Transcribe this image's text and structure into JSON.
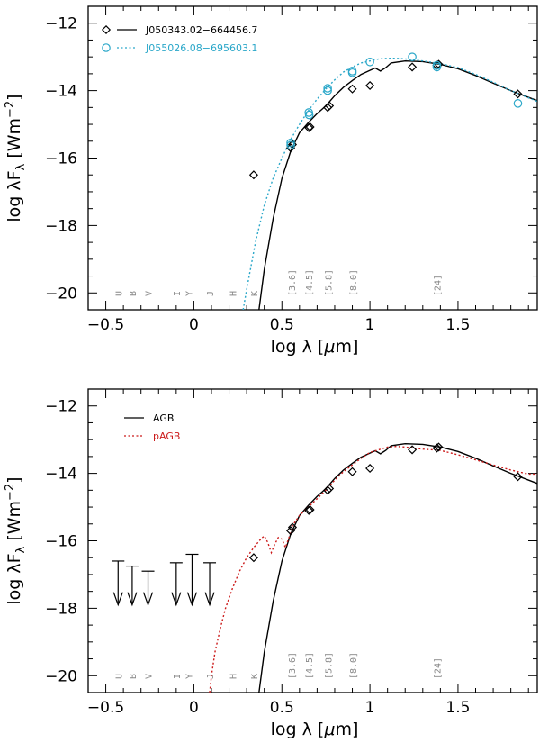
{
  "chart_data": [
    {
      "type": "scatter",
      "panel": "top",
      "xlabel": "log λ [μm]",
      "ylabel": "log λF_λ [Wm⁻²]",
      "xlim": [
        -0.6,
        1.95
      ],
      "ylim": [
        -20.5,
        -11.5
      ],
      "xticks": [
        -0.5,
        0,
        0.5,
        1,
        1.5
      ],
      "xtick_labels": [
        "−0.5",
        "0",
        "0.5",
        "1",
        "1.5"
      ],
      "yticks": [
        -20,
        -18,
        -16,
        -14,
        -12
      ],
      "ytick_labels": [
        "−20",
        "−18",
        "−16",
        "−14",
        "−12"
      ],
      "legend_position": "top-left",
      "band_labels": [
        {
          "label": "U",
          "x": -0.43
        },
        {
          "label": "B",
          "x": -0.35
        },
        {
          "label": "V",
          "x": -0.26
        },
        {
          "label": "I",
          "x": -0.1
        },
        {
          "label": "Y",
          "x": -0.03
        },
        {
          "label": "J",
          "x": 0.09
        },
        {
          "label": "H",
          "x": 0.22
        },
        {
          "label": "K",
          "x": 0.34
        },
        {
          "label": "[3.6]",
          "x": 0.556
        },
        {
          "label": "[4.5]",
          "x": 0.653
        },
        {
          "label": "[5.8]",
          "x": 0.763
        },
        {
          "label": "[8.0]",
          "x": 0.903
        },
        {
          "label": "[24]",
          "x": 1.38
        }
      ],
      "series": [
        {
          "name": "J050343.02−664456.7",
          "marker": "diamond",
          "color": "#000000",
          "line_style": "solid",
          "points": [
            [
              0.34,
              -16.5
            ],
            [
              0.55,
              -15.7
            ],
            [
              0.56,
              -15.6
            ],
            [
              0.653,
              -15.1
            ],
            [
              0.66,
              -15.08
            ],
            [
              0.76,
              -14.5
            ],
            [
              0.77,
              -14.45
            ],
            [
              0.9,
              -13.95
            ],
            [
              1.0,
              -13.85
            ],
            [
              1.24,
              -13.3
            ],
            [
              1.38,
              -13.25
            ],
            [
              1.39,
              -13.22
            ],
            [
              1.84,
              -14.1
            ]
          ],
          "model": [
            [
              0.37,
              -20.5
            ],
            [
              0.4,
              -19.3
            ],
            [
              0.45,
              -17.8
            ],
            [
              0.5,
              -16.6
            ],
            [
              0.55,
              -15.8
            ],
            [
              0.6,
              -15.25
            ],
            [
              0.65,
              -14.95
            ],
            [
              0.7,
              -14.68
            ],
            [
              0.75,
              -14.45
            ],
            [
              0.8,
              -14.15
            ],
            [
              0.85,
              -13.9
            ],
            [
              0.9,
              -13.7
            ],
            [
              0.95,
              -13.52
            ],
            [
              1.0,
              -13.4
            ],
            [
              1.03,
              -13.33
            ],
            [
              1.06,
              -13.42
            ],
            [
              1.09,
              -13.32
            ],
            [
              1.12,
              -13.18
            ],
            [
              1.2,
              -13.12
            ],
            [
              1.3,
              -13.14
            ],
            [
              1.4,
              -13.22
            ],
            [
              1.5,
              -13.35
            ],
            [
              1.6,
              -13.55
            ],
            [
              1.7,
              -13.78
            ],
            [
              1.8,
              -14.0
            ],
            [
              1.95,
              -14.3
            ]
          ]
        },
        {
          "name": "J055026.08−695603.1",
          "marker": "circle",
          "color": "#2aa7c9",
          "line_style": "dotted",
          "points": [
            [
              0.55,
              -15.55
            ],
            [
              0.55,
              -15.62
            ],
            [
              0.653,
              -14.65
            ],
            [
              0.655,
              -14.72
            ],
            [
              0.76,
              -13.93
            ],
            [
              0.76,
              -14.0
            ],
            [
              0.9,
              -13.42
            ],
            [
              0.9,
              -13.47
            ],
            [
              1.0,
              -13.15
            ],
            [
              1.24,
              -13.0
            ],
            [
              1.38,
              -13.25
            ],
            [
              1.38,
              -13.3
            ],
            [
              1.84,
              -14.38
            ]
          ],
          "model": [
            [
              0.28,
              -20.5
            ],
            [
              0.3,
              -19.9
            ],
            [
              0.35,
              -18.5
            ],
            [
              0.4,
              -17.4
            ],
            [
              0.45,
              -16.6
            ],
            [
              0.5,
              -16.0
            ],
            [
              0.55,
              -15.45
            ],
            [
              0.6,
              -15.0
            ],
            [
              0.65,
              -14.6
            ],
            [
              0.7,
              -14.25
            ],
            [
              0.75,
              -13.95
            ],
            [
              0.8,
              -13.68
            ],
            [
              0.85,
              -13.45
            ],
            [
              0.9,
              -13.3
            ],
            [
              0.95,
              -13.18
            ],
            [
              1.0,
              -13.12
            ],
            [
              1.05,
              -13.06
            ],
            [
              1.1,
              -13.04
            ],
            [
              1.15,
              -13.04
            ],
            [
              1.2,
              -13.06
            ],
            [
              1.3,
              -13.12
            ],
            [
              1.4,
              -13.2
            ],
            [
              1.5,
              -13.32
            ],
            [
              1.6,
              -13.52
            ],
            [
              1.7,
              -13.75
            ],
            [
              1.8,
              -14.0
            ],
            [
              1.95,
              -14.32
            ]
          ]
        }
      ]
    },
    {
      "type": "scatter",
      "panel": "bottom",
      "xlabel": "log λ [μm]",
      "ylabel": "log λF_λ [Wm⁻²]",
      "xlim": [
        -0.6,
        1.95
      ],
      "ylim": [
        -20.5,
        -11.5
      ],
      "xticks": [
        -0.5,
        0,
        0.5,
        1,
        1.5
      ],
      "xtick_labels": [
        "−0.5",
        "0",
        "0.5",
        "1",
        "1.5"
      ],
      "yticks": [
        -20,
        -18,
        -16,
        -14,
        -12
      ],
      "ytick_labels": [
        "−20",
        "−18",
        "−16",
        "−14",
        "−12"
      ],
      "legend_position": "top-left",
      "band_labels": [
        {
          "label": "U",
          "x": -0.43
        },
        {
          "label": "B",
          "x": -0.35
        },
        {
          "label": "V",
          "x": -0.26
        },
        {
          "label": "I",
          "x": -0.1
        },
        {
          "label": "Y",
          "x": -0.03
        },
        {
          "label": "J",
          "x": 0.09
        },
        {
          "label": "H",
          "x": 0.22
        },
        {
          "label": "K",
          "x": 0.34
        },
        {
          "label": "[3.6]",
          "x": 0.556
        },
        {
          "label": "[4.5]",
          "x": 0.653
        },
        {
          "label": "[5.8]",
          "x": 0.763
        },
        {
          "label": "[8.0]",
          "x": 0.903
        },
        {
          "label": "[24]",
          "x": 1.38
        }
      ],
      "observed_points": [
        [
          0.34,
          -16.5
        ],
        [
          0.55,
          -15.7
        ],
        [
          0.56,
          -15.6
        ],
        [
          0.653,
          -15.1
        ],
        [
          0.66,
          -15.08
        ],
        [
          0.76,
          -14.5
        ],
        [
          0.77,
          -14.45
        ],
        [
          0.9,
          -13.95
        ],
        [
          1.0,
          -13.85
        ],
        [
          1.24,
          -13.3
        ],
        [
          1.38,
          -13.25
        ],
        [
          1.39,
          -13.22
        ],
        [
          1.84,
          -14.1
        ]
      ],
      "upper_limits": [
        [
          -0.43,
          -16.6
        ],
        [
          -0.35,
          -16.75
        ],
        [
          -0.26,
          -16.9
        ],
        [
          -0.1,
          -16.65
        ],
        [
          -0.01,
          -16.4
        ],
        [
          0.09,
          -16.65
        ]
      ],
      "upper_limit_bottom": -17.9,
      "series": [
        {
          "name": "AGB",
          "color": "#000000",
          "line_style": "solid",
          "model": [
            [
              0.37,
              -20.5
            ],
            [
              0.4,
              -19.3
            ],
            [
              0.45,
              -17.8
            ],
            [
              0.5,
              -16.6
            ],
            [
              0.55,
              -15.8
            ],
            [
              0.6,
              -15.25
            ],
            [
              0.65,
              -14.95
            ],
            [
              0.7,
              -14.68
            ],
            [
              0.75,
              -14.45
            ],
            [
              0.8,
              -14.15
            ],
            [
              0.85,
              -13.9
            ],
            [
              0.9,
              -13.7
            ],
            [
              0.95,
              -13.52
            ],
            [
              1.0,
              -13.4
            ],
            [
              1.03,
              -13.33
            ],
            [
              1.06,
              -13.42
            ],
            [
              1.09,
              -13.32
            ],
            [
              1.12,
              -13.18
            ],
            [
              1.2,
              -13.12
            ],
            [
              1.3,
              -13.14
            ],
            [
              1.4,
              -13.22
            ],
            [
              1.5,
              -13.35
            ],
            [
              1.6,
              -13.55
            ],
            [
              1.7,
              -13.78
            ],
            [
              1.8,
              -14.0
            ],
            [
              1.95,
              -14.3
            ]
          ]
        },
        {
          "name": "pAGB",
          "color": "#cc1a1a",
          "line_style": "dotted",
          "model": [
            [
              0.09,
              -20.5
            ],
            [
              0.1,
              -20.0
            ],
            [
              0.12,
              -19.3
            ],
            [
              0.15,
              -18.6
            ],
            [
              0.18,
              -18.0
            ],
            [
              0.22,
              -17.4
            ],
            [
              0.26,
              -16.9
            ],
            [
              0.3,
              -16.5
            ],
            [
              0.34,
              -16.2
            ],
            [
              0.38,
              -15.95
            ],
            [
              0.4,
              -15.85
            ],
            [
              0.42,
              -16.05
            ],
            [
              0.44,
              -16.35
            ],
            [
              0.46,
              -16.1
            ],
            [
              0.48,
              -15.9
            ],
            [
              0.5,
              -15.95
            ],
            [
              0.52,
              -16.2
            ],
            [
              0.54,
              -15.9
            ],
            [
              0.56,
              -15.55
            ],
            [
              0.6,
              -15.25
            ],
            [
              0.65,
              -15.0
            ],
            [
              0.7,
              -14.75
            ],
            [
              0.75,
              -14.5
            ],
            [
              0.8,
              -14.2
            ],
            [
              0.85,
              -13.95
            ],
            [
              0.9,
              -13.75
            ],
            [
              0.95,
              -13.55
            ],
            [
              1.0,
              -13.38
            ],
            [
              1.05,
              -13.3
            ],
            [
              1.1,
              -13.22
            ],
            [
              1.15,
              -13.2
            ],
            [
              1.2,
              -13.22
            ],
            [
              1.3,
              -13.28
            ],
            [
              1.4,
              -13.32
            ],
            [
              1.5,
              -13.45
            ],
            [
              1.6,
              -13.6
            ],
            [
              1.7,
              -13.75
            ],
            [
              1.8,
              -13.9
            ],
            [
              1.9,
              -14.02
            ],
            [
              1.95,
              -14.02
            ]
          ]
        }
      ]
    }
  ]
}
